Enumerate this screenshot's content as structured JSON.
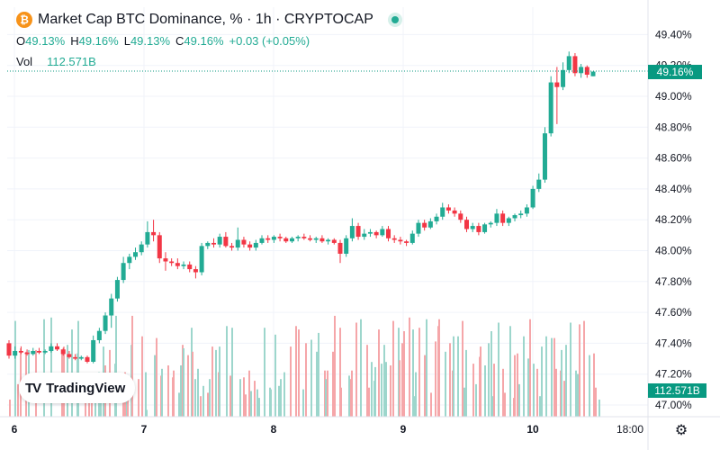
{
  "header": {
    "coin_symbol": "₿",
    "title": "Market Cap BTC Dominance, % · 1h · CRYPTOCAP",
    "open_label": "O",
    "open": "49.13%",
    "high_label": "H",
    "high": "49.16%",
    "low_label": "L",
    "low": "49.13%",
    "close_label": "C",
    "close": "49.16%",
    "change": "+0.03 (+0.05%)",
    "volume_label": "Vol",
    "volume": "112.571B"
  },
  "badges": {
    "price": "49.16%",
    "volume": "112.571B"
  },
  "logo": {
    "mark": "TV",
    "name": "TradingView"
  },
  "colors": {
    "up": "#22ab94",
    "down": "#f23645",
    "vol_up": "#9dd6cc",
    "vol_down": "#f5a6a9",
    "badge": "#089981"
  },
  "chart_data": {
    "type": "candlestick",
    "y_ticks": [
      "49.40%",
      "49.20%",
      "49.00%",
      "48.80%",
      "48.60%",
      "48.40%",
      "48.20%",
      "48.00%",
      "47.80%",
      "47.60%",
      "47.40%",
      "47.20%",
      "47.00%"
    ],
    "ylim": [
      47.0,
      49.5
    ],
    "x_ticks": [
      "6",
      "7",
      "8",
      "9",
      "10",
      "18:00"
    ],
    "last_price": 49.16,
    "grid": true,
    "candles": [
      [
        47.4,
        47.42,
        47.3,
        47.32
      ],
      [
        47.32,
        47.38,
        47.3,
        47.35
      ],
      [
        47.35,
        47.38,
        47.33,
        47.34
      ],
      [
        47.34,
        47.36,
        47.32,
        47.33
      ],
      [
        47.33,
        47.37,
        47.32,
        47.35
      ],
      [
        47.35,
        47.37,
        47.33,
        47.34
      ],
      [
        47.34,
        47.36,
        47.33,
        47.35
      ],
      [
        47.35,
        47.4,
        47.34,
        47.38
      ],
      [
        47.38,
        47.4,
        47.35,
        47.36
      ],
      [
        47.36,
        47.37,
        47.32,
        47.33
      ],
      [
        47.33,
        47.35,
        47.3,
        47.31
      ],
      [
        47.31,
        47.33,
        47.29,
        47.3
      ],
      [
        47.3,
        47.32,
        47.29,
        47.31
      ],
      [
        47.31,
        47.32,
        47.27,
        47.28
      ],
      [
        47.28,
        47.45,
        47.27,
        47.42
      ],
      [
        47.42,
        47.5,
        47.4,
        47.48
      ],
      [
        47.48,
        47.6,
        47.46,
        47.58
      ],
      [
        47.58,
        47.72,
        47.5,
        47.69
      ],
      [
        47.69,
        47.83,
        47.67,
        47.81
      ],
      [
        47.81,
        47.96,
        47.79,
        47.92
      ],
      [
        47.92,
        47.98,
        47.88,
        47.96
      ],
      [
        47.96,
        48.02,
        47.94,
        47.99
      ],
      [
        47.99,
        48.06,
        47.97,
        48.04
      ],
      [
        48.04,
        48.19,
        48.02,
        48.12
      ],
      [
        48.12,
        48.2,
        48.06,
        48.1
      ],
      [
        48.1,
        48.12,
        47.92,
        47.95
      ],
      [
        47.95,
        47.99,
        47.87,
        47.93
      ],
      [
        47.93,
        47.95,
        47.9,
        47.92
      ],
      [
        47.92,
        47.95,
        47.88,
        47.9
      ],
      [
        47.9,
        47.93,
        47.88,
        47.91
      ],
      [
        47.91,
        47.93,
        47.86,
        47.88
      ],
      [
        47.88,
        47.9,
        47.82,
        47.86
      ],
      [
        47.86,
        48.05,
        47.84,
        48.03
      ],
      [
        48.03,
        48.06,
        48.01,
        48.05
      ],
      [
        48.05,
        48.08,
        48.02,
        48.04
      ],
      [
        48.04,
        48.11,
        48.02,
        48.09
      ],
      [
        48.09,
        48.12,
        48.02,
        48.03
      ],
      [
        48.03,
        48.05,
        48.0,
        48.02
      ],
      [
        48.02,
        48.15,
        48.0,
        48.07
      ],
      [
        48.07,
        48.09,
        48.02,
        48.04
      ],
      [
        48.04,
        48.06,
        48.0,
        48.02
      ],
      [
        48.02,
        48.07,
        48.0,
        48.05
      ],
      [
        48.05,
        48.1,
        48.04,
        48.08
      ],
      [
        48.08,
        48.1,
        48.05,
        48.07
      ],
      [
        48.07,
        48.1,
        48.05,
        48.09
      ],
      [
        48.09,
        48.11,
        48.06,
        48.08
      ],
      [
        48.08,
        48.09,
        48.05,
        48.06
      ],
      [
        48.06,
        48.09,
        48.05,
        48.08
      ],
      [
        48.08,
        48.1,
        48.06,
        48.09
      ],
      [
        48.09,
        48.11,
        48.07,
        48.08
      ],
      [
        48.08,
        48.1,
        48.06,
        48.07
      ],
      [
        48.07,
        48.09,
        48.05,
        48.08
      ],
      [
        48.08,
        48.1,
        48.05,
        48.06
      ],
      [
        48.06,
        48.08,
        48.04,
        48.07
      ],
      [
        48.07,
        48.08,
        48.04,
        48.05
      ],
      [
        48.05,
        48.07,
        47.92,
        47.98
      ],
      [
        47.98,
        48.1,
        47.96,
        48.08
      ],
      [
        48.08,
        48.21,
        48.06,
        48.16
      ],
      [
        48.16,
        48.18,
        48.07,
        48.09
      ],
      [
        48.09,
        48.14,
        48.07,
        48.11
      ],
      [
        48.11,
        48.14,
        48.09,
        48.12
      ],
      [
        48.12,
        48.13,
        48.08,
        48.1
      ],
      [
        48.1,
        48.16,
        48.09,
        48.14
      ],
      [
        48.14,
        48.16,
        48.06,
        48.08
      ],
      [
        48.08,
        48.1,
        48.05,
        48.07
      ],
      [
        48.07,
        48.09,
        48.04,
        48.06
      ],
      [
        48.06,
        48.07,
        48.03,
        48.05
      ],
      [
        48.05,
        48.13,
        48.04,
        48.11
      ],
      [
        48.11,
        48.2,
        48.09,
        48.18
      ],
      [
        48.18,
        48.2,
        48.13,
        48.15
      ],
      [
        48.15,
        48.21,
        48.14,
        48.19
      ],
      [
        48.19,
        48.24,
        48.17,
        48.22
      ],
      [
        48.22,
        48.31,
        48.2,
        48.28
      ],
      [
        48.28,
        48.3,
        48.24,
        48.26
      ],
      [
        48.26,
        48.28,
        48.22,
        48.24
      ],
      [
        48.24,
        48.26,
        48.18,
        48.2
      ],
      [
        48.2,
        48.22,
        48.12,
        48.14
      ],
      [
        48.14,
        48.18,
        48.12,
        48.16
      ],
      [
        48.16,
        48.18,
        48.1,
        48.12
      ],
      [
        48.12,
        48.18,
        48.11,
        48.17
      ],
      [
        48.17,
        48.19,
        48.15,
        48.18
      ],
      [
        48.18,
        48.27,
        48.16,
        48.24
      ],
      [
        48.24,
        48.26,
        48.16,
        48.18
      ],
      [
        48.18,
        48.22,
        48.16,
        48.21
      ],
      [
        48.21,
        48.24,
        48.19,
        48.23
      ],
      [
        48.23,
        48.26,
        48.21,
        48.24
      ],
      [
        48.24,
        48.3,
        48.22,
        48.28
      ],
      [
        48.28,
        48.42,
        48.27,
        48.4
      ],
      [
        48.4,
        48.5,
        48.38,
        48.46
      ],
      [
        48.46,
        48.8,
        48.44,
        48.76
      ],
      [
        48.76,
        49.13,
        48.74,
        49.09
      ],
      [
        49.09,
        49.19,
        48.82,
        49.06
      ],
      [
        49.06,
        49.22,
        49.04,
        49.17
      ],
      [
        49.17,
        49.29,
        49.15,
        49.26
      ],
      [
        49.26,
        49.28,
        49.13,
        49.15
      ],
      [
        49.15,
        49.21,
        49.12,
        49.19
      ],
      [
        49.19,
        49.2,
        49.12,
        49.14
      ],
      [
        49.13,
        49.16,
        49.13,
        49.16
      ]
    ],
    "volume_bars": [
      [
        2,
        10,
        "down"
      ],
      [
        8,
        56,
        "up"
      ],
      [
        11,
        19,
        "down"
      ],
      [
        14,
        40,
        "down"
      ],
      [
        20,
        38,
        "down"
      ],
      [
        23,
        39,
        "up"
      ],
      [
        31,
        39,
        "down"
      ],
      [
        40,
        57,
        "up"
      ],
      [
        48,
        58,
        "up"
      ],
      [
        60,
        38,
        "down"
      ],
      [
        62,
        41,
        "down"
      ],
      [
        66,
        42,
        "up"
      ],
      [
        71,
        51,
        "up"
      ],
      [
        77,
        37,
        "up"
      ],
      [
        78,
        56,
        "up"
      ],
      [
        86,
        20,
        "down"
      ],
      [
        90,
        21,
        "down"
      ],
      [
        93,
        16,
        "down"
      ],
      [
        97,
        24,
        "up"
      ],
      [
        101,
        26,
        "up"
      ],
      [
        103,
        25,
        "up"
      ],
      [
        106,
        41,
        "up"
      ],
      [
        108,
        30,
        "down"
      ],
      [
        113,
        39,
        "down"
      ],
      [
        119,
        31,
        "up"
      ],
      [
        120,
        59,
        "up"
      ],
      [
        128,
        14,
        "down"
      ],
      [
        130,
        26,
        "down"
      ],
      [
        132,
        24,
        "up"
      ],
      [
        133,
        24,
        "down"
      ],
      [
        137,
        42,
        "up"
      ],
      [
        138,
        59,
        "down"
      ],
      [
        145,
        22,
        "down"
      ],
      [
        149,
        47,
        "down"
      ],
      [
        153,
        26,
        "up"
      ],
      [
        154,
        4,
        "up"
      ],
      [
        163,
        36,
        "up"
      ],
      [
        165,
        46,
        "down"
      ],
      [
        170,
        24,
        "down"
      ],
      [
        171,
        28,
        "up"
      ],
      [
        178,
        30,
        "down"
      ],
      [
        183,
        23,
        "down"
      ],
      [
        184,
        27,
        "down"
      ],
      [
        190,
        14,
        "up"
      ],
      [
        192,
        30,
        "up"
      ],
      [
        194,
        42,
        "down"
      ],
      [
        195,
        40,
        "up"
      ],
      [
        200,
        36,
        "down"
      ],
      [
        204,
        52,
        "up"
      ],
      [
        205,
        38,
        "down"
      ],
      [
        208,
        22,
        "up"
      ],
      [
        211,
        28,
        "up"
      ],
      [
        214,
        12,
        "down"
      ],
      [
        217,
        18,
        "up"
      ],
      [
        222,
        14,
        "down"
      ],
      [
        224,
        22,
        "up"
      ],
      [
        227,
        41,
        "down"
      ],
      [
        231,
        39,
        "up"
      ],
      [
        234,
        26,
        "down"
      ],
      [
        235,
        41,
        "up"
      ],
      [
        243,
        53,
        "up"
      ],
      [
        247,
        24,
        "down"
      ],
      [
        249,
        52,
        "up"
      ],
      [
        258,
        22,
        "up"
      ],
      [
        262,
        23,
        "down"
      ],
      [
        263,
        3,
        "down"
      ],
      [
        264,
        13,
        "down"
      ],
      [
        268,
        27,
        "down"
      ],
      [
        270,
        15,
        "up"
      ],
      [
        274,
        21,
        "down"
      ],
      [
        277,
        16,
        "up"
      ],
      [
        279,
        11,
        "up"
      ],
      [
        285,
        52,
        "up"
      ],
      [
        291,
        17,
        "up"
      ],
      [
        292,
        16,
        "up"
      ],
      [
        297,
        48,
        "up"
      ],
      [
        301,
        18,
        "up"
      ],
      [
        303,
        22,
        "up"
      ],
      [
        307,
        26,
        "up"
      ],
      [
        314,
        41,
        "down"
      ],
      [
        320,
        53,
        "down"
      ],
      [
        323,
        51,
        "down"
      ],
      [
        328,
        16,
        "up"
      ],
      [
        331,
        43,
        "down"
      ],
      [
        337,
        45,
        "up"
      ],
      [
        343,
        38,
        "up"
      ],
      [
        345,
        49,
        "up"
      ],
      [
        352,
        27,
        "down"
      ],
      [
        353,
        22,
        "up"
      ],
      [
        355,
        27,
        "down"
      ],
      [
        361,
        38,
        "down"
      ],
      [
        363,
        59,
        "down"
      ],
      [
        369,
        52,
        "down"
      ],
      [
        370,
        17,
        "down"
      ],
      [
        379,
        24,
        "up"
      ],
      [
        381,
        22,
        "down"
      ],
      [
        382,
        27,
        "down"
      ],
      [
        387,
        55,
        "down"
      ],
      [
        392,
        57,
        "up"
      ],
      [
        399,
        42,
        "down"
      ],
      [
        401,
        17,
        "down"
      ],
      [
        404,
        32,
        "up"
      ],
      [
        407,
        21,
        "up"
      ],
      [
        408,
        29,
        "up"
      ],
      [
        412,
        51,
        "down"
      ],
      [
        415,
        31,
        "up"
      ],
      [
        418,
        42,
        "up"
      ],
      [
        420,
        32,
        "up"
      ],
      [
        425,
        30,
        "down"
      ],
      [
        428,
        56,
        "down"
      ],
      [
        434,
        52,
        "up"
      ],
      [
        435,
        33,
        "down"
      ],
      [
        438,
        43,
        "down"
      ],
      [
        440,
        50,
        "down"
      ],
      [
        446,
        58,
        "down"
      ],
      [
        450,
        51,
        "up"
      ],
      [
        451,
        12,
        "up"
      ],
      [
        453,
        26,
        "up"
      ],
      [
        457,
        52,
        "down"
      ],
      [
        463,
        36,
        "down"
      ],
      [
        465,
        57,
        "up"
      ],
      [
        470,
        14,
        "down"
      ],
      [
        475,
        44,
        "down"
      ],
      [
        478,
        53,
        "down"
      ],
      [
        479,
        57,
        "down"
      ],
      [
        486,
        38,
        "up"
      ],
      [
        491,
        43,
        "down"
      ],
      [
        494,
        27,
        "down"
      ],
      [
        495,
        47,
        "up"
      ],
      [
        500,
        47,
        "up"
      ],
      [
        505,
        56,
        "down"
      ],
      [
        507,
        17,
        "up"
      ],
      [
        509,
        39,
        "up"
      ],
      [
        517,
        31,
        "down"
      ],
      [
        520,
        19,
        "up"
      ],
      [
        524,
        35,
        "down"
      ],
      [
        525,
        41,
        "down"
      ],
      [
        530,
        30,
        "up"
      ],
      [
        534,
        43,
        "up"
      ],
      [
        537,
        50,
        "up"
      ],
      [
        538,
        12,
        "up"
      ],
      [
        540,
        31,
        "down"
      ],
      [
        545,
        55,
        "up"
      ],
      [
        550,
        28,
        "down"
      ],
      [
        552,
        14,
        "down"
      ],
      [
        558,
        53,
        "up"
      ],
      [
        562,
        11,
        "down"
      ],
      [
        563,
        36,
        "down"
      ],
      [
        566,
        37,
        "down"
      ],
      [
        568,
        19,
        "up"
      ],
      [
        573,
        47,
        "up"
      ],
      [
        578,
        34,
        "up"
      ],
      [
        580,
        57,
        "down"
      ],
      [
        584,
        31,
        "up"
      ],
      [
        588,
        28,
        "down"
      ],
      [
        591,
        12,
        "up"
      ],
      [
        593,
        41,
        "up"
      ],
      [
        598,
        47,
        "up"
      ],
      [
        604,
        46,
        "up"
      ],
      [
        607,
        46,
        "down"
      ],
      [
        609,
        28,
        "down"
      ],
      [
        614,
        27,
        "down"
      ],
      [
        615,
        39,
        "up"
      ],
      [
        618,
        21,
        "down"
      ],
      [
        620,
        42,
        "up"
      ],
      [
        625,
        55,
        "up"
      ],
      [
        631,
        27,
        "up"
      ],
      [
        633,
        25,
        "up"
      ],
      [
        635,
        54,
        "down"
      ],
      [
        640,
        56,
        "down"
      ],
      [
        646,
        36,
        "up"
      ],
      [
        651,
        37,
        "down"
      ],
      [
        653,
        17,
        "down"
      ],
      [
        657,
        10,
        "up"
      ]
    ]
  }
}
